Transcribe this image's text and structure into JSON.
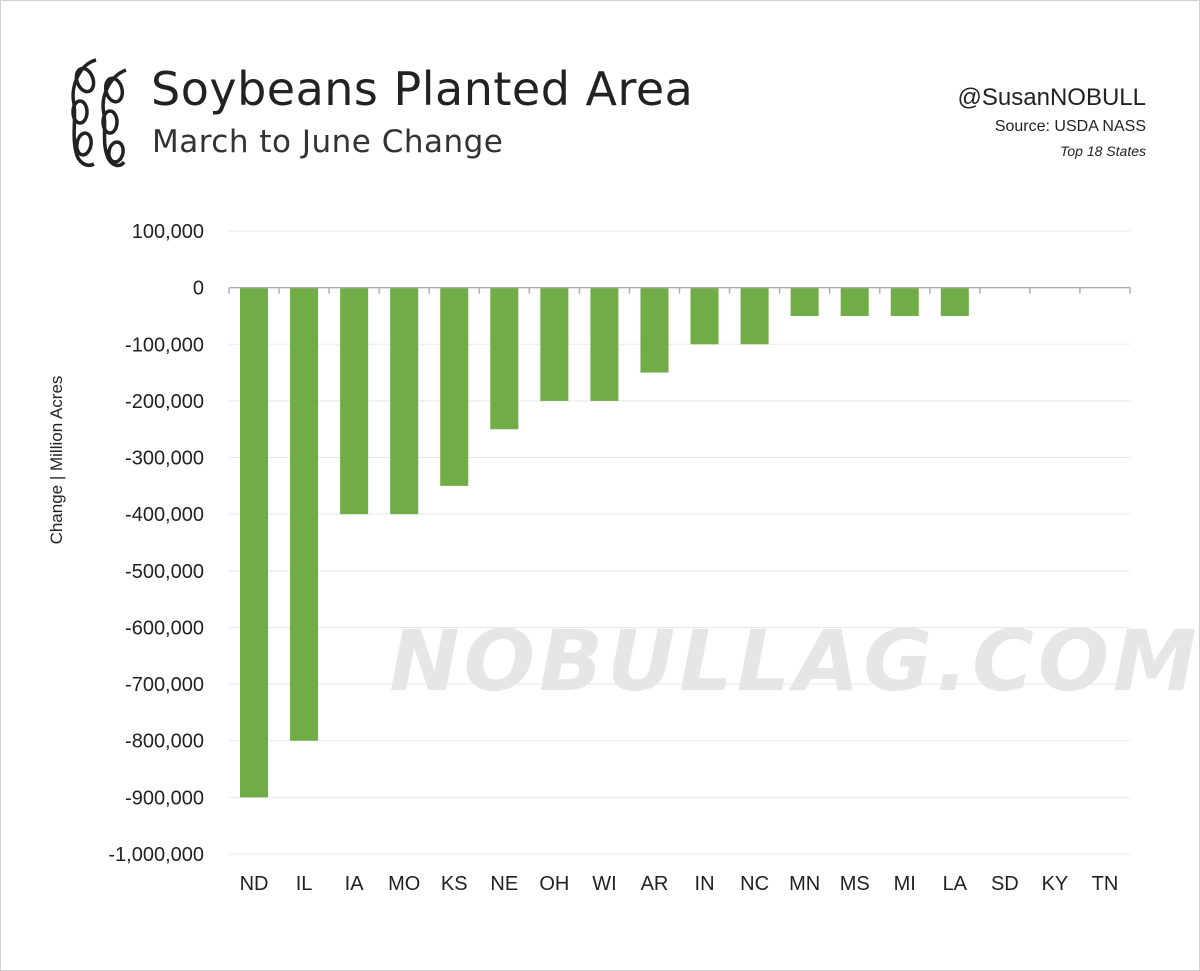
{
  "header": {
    "title": "Soybeans Planted Area",
    "subtitle": "March to June Change",
    "handle": "@SusanNOBULL",
    "source": "Source: USDA NASS",
    "note": "Top 18 States",
    "watermark": "NOBULLAG.COM"
  },
  "colors": {
    "bar": "#70ad47",
    "grid": "#e8e8e8",
    "axis": "#b0b0b0",
    "text": "#222222",
    "watermark": "#e6e6e6"
  },
  "chart_data": {
    "type": "bar",
    "title": "Soybeans Planted Area",
    "subtitle": "March to June Change",
    "xlabel": "",
    "ylabel": "Change | Million Acres",
    "ylim": [
      -1000000,
      100000
    ],
    "ytick_step": 100000,
    "yticks": [
      "100,000",
      "0",
      "-100,000",
      "-200,000",
      "-300,000",
      "-400,000",
      "-500,000",
      "-600,000",
      "-700,000",
      "-800,000",
      "-900,000",
      "-1,000,000"
    ],
    "categories": [
      "ND",
      "IL",
      "IA",
      "MO",
      "KS",
      "NE",
      "OH",
      "WI",
      "AR",
      "IN",
      "NC",
      "MN",
      "MS",
      "MI",
      "LA",
      "SD",
      "KY",
      "TN"
    ],
    "values": [
      -900000,
      -800000,
      -400000,
      -400000,
      -350000,
      -250000,
      -200000,
      -200000,
      -150000,
      -100000,
      -100000,
      -50000,
      -50000,
      -50000,
      -50000,
      0,
      0,
      0
    ],
    "grid": true,
    "legend": "none"
  }
}
